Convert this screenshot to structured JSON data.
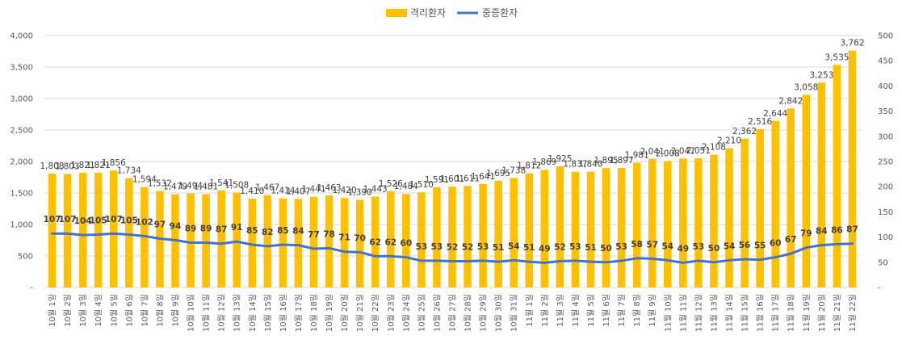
{
  "chart_data": {
    "type": "bar",
    "title": "",
    "xlabel": "",
    "ylabel": "",
    "ylim": [
      0,
      4000
    ],
    "y2lim": [
      0,
      500
    ],
    "yticks": [
      "-",
      "500",
      "1,000",
      "1,500",
      "2,000",
      "2,500",
      "3,000",
      "3,500",
      "4,000"
    ],
    "y2ticks": [
      "-",
      "50",
      "100",
      "150",
      "200",
      "250",
      "300",
      "350",
      "400",
      "450",
      "500"
    ],
    "legend": {
      "position": "top-center"
    },
    "categories": [
      "10월 1일",
      "10월 2일",
      "10월 3일",
      "10월 4일",
      "10월 5일",
      "10월 6일",
      "10월 7일",
      "10월 8일",
      "10월 9일",
      "10월 10일",
      "10월 11일",
      "10월 12일",
      "10월 13일",
      "10월 14일",
      "10월 15일",
      "10월 16일",
      "10월 17일",
      "10월 18일",
      "10월 19일",
      "10월 20일",
      "10월 21일",
      "10월 22일",
      "10월 23일",
      "10월 24일",
      "10월 25일",
      "10월 26일",
      "10월 27일",
      "10월 28일",
      "10월 29일",
      "10월 30일",
      "10월 31일",
      "11월 1일",
      "11월 2일",
      "11월 3일",
      "11월 4일",
      "11월 5일",
      "11월 6일",
      "11월 7일",
      "11월 8일",
      "11월 9일",
      "11월 10일",
      "11월 11일",
      "11월 12일",
      "11월 13일",
      "11월 14일",
      "11월 15일",
      "11월 16일",
      "11월 17일",
      "11월 18일",
      "11월 19일",
      "11월 20일",
      "11월 21일",
      "11월 22일"
    ],
    "series": [
      {
        "name": "격리환자",
        "type": "bar",
        "axis": "left",
        "color": "#FFC000",
        "values": [
          1808,
          1803,
          1821,
          1821,
          1856,
          1734,
          1594,
          1532,
          1479,
          1494,
          1481,
          1541,
          1508,
          1410,
          1467,
          1414,
          1407,
          1441,
          1463,
          1420,
          1390,
          1443,
          1526,
          1484,
          1510,
          1591,
          1601,
          1611,
          1641,
          1695,
          1738,
          1812,
          1869,
          1925,
          1837,
          1840,
          1895,
          1897,
          1981,
          2041,
          2008,
          2047,
          2051,
          2108,
          2210,
          2362,
          2516,
          2644,
          2842,
          3058,
          3253,
          3535,
          3762
        ],
        "labels": [
          "1,808",
          "1,803",
          "1,821",
          "1,821",
          "1,856",
          "1,734",
          "1,594",
          "1,532",
          "1,479",
          "1,494",
          "1,481",
          "1,541",
          "1,508",
          "1,410",
          "1,467",
          "1,414",
          "1,407",
          "1,441",
          "1,463",
          "1,420",
          "1,390",
          "1,443",
          "1,526",
          "1,484",
          "1,510",
          "1,591",
          "1,601",
          "1,611",
          "1,641",
          "1,695",
          "1,738",
          "1,812",
          "1,869",
          "1,925",
          "1,837",
          "1,840",
          "1,895",
          "1,897",
          "1,981",
          "2,041",
          "2,008",
          "2,047",
          "2,051",
          "2,108",
          "2,210",
          "2,362",
          "2,516",
          "2,644",
          "2,842",
          "3,058",
          "3,253",
          "3,535",
          "3,762"
        ]
      },
      {
        "name": "중증환자",
        "type": "line",
        "axis": "right",
        "color": "#4472C4",
        "values": [
          107,
          107,
          104,
          105,
          107,
          105,
          102,
          97,
          94,
          89,
          89,
          87,
          91,
          85,
          82,
          85,
          84,
          77,
          78,
          71,
          70,
          62,
          62,
          60,
          53,
          53,
          52,
          52,
          53,
          51,
          54,
          51,
          49,
          52,
          53,
          51,
          50,
          53,
          58,
          57,
          54,
          49,
          53,
          50,
          54,
          56,
          55,
          60,
          67,
          79,
          84,
          86,
          87
        ],
        "labels": [
          "107",
          "107",
          "104",
          "105",
          "107",
          "105",
          "102",
          "97",
          "94",
          "89",
          "89",
          "87",
          "91",
          "85",
          "82",
          "85",
          "84",
          "77",
          "78",
          "71",
          "70",
          "62",
          "62",
          "60",
          "53",
          "53",
          "52",
          "52",
          "53",
          "51",
          "54",
          "51",
          "49",
          "52",
          "53",
          "51",
          "50",
          "53",
          "58",
          "57",
          "54",
          "49",
          "53",
          "50",
          "54",
          "56",
          "55",
          "60",
          "67",
          "79",
          "84",
          "86",
          "87"
        ]
      }
    ]
  }
}
